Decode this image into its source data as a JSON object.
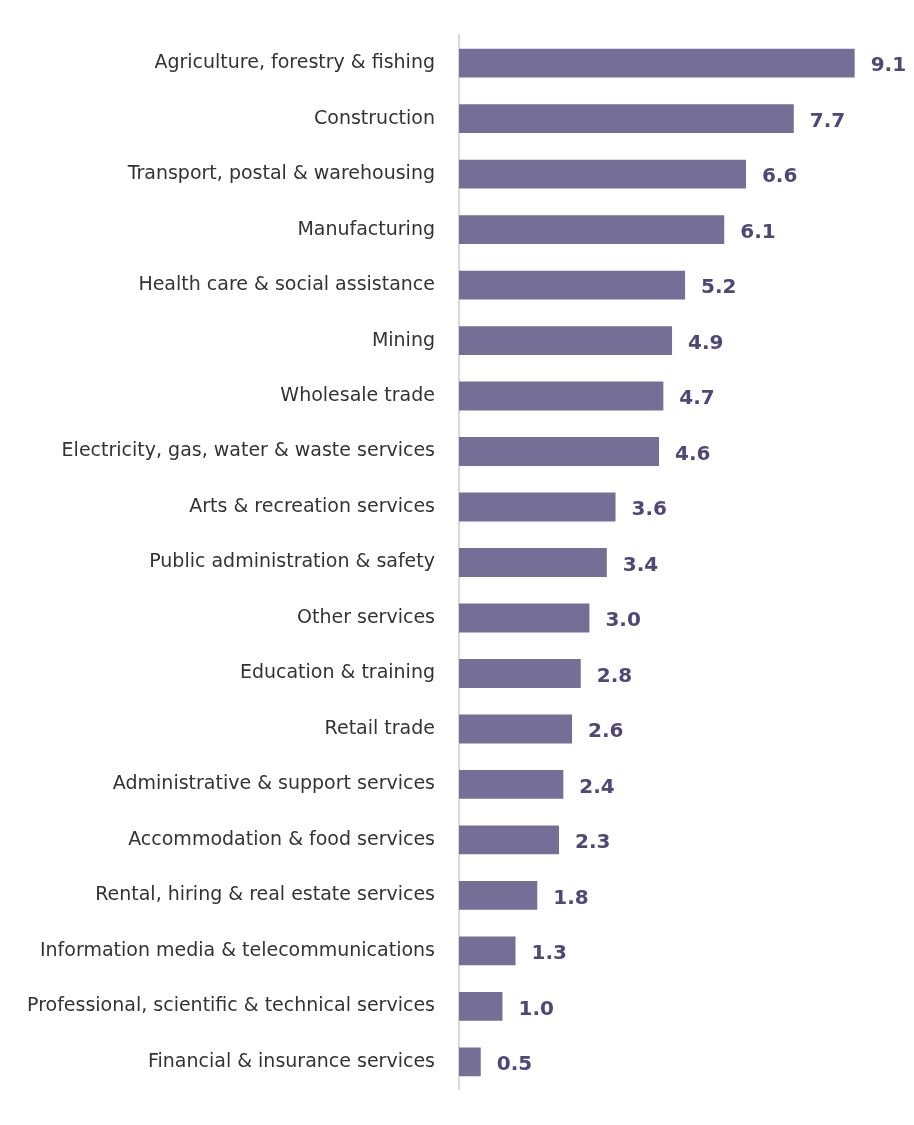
{
  "chart_data": {
    "type": "bar",
    "orientation": "horizontal",
    "categories": [
      "Agriculture, forestry & fishing",
      "Construction",
      "Transport, postal & warehousing",
      "Manufacturing",
      "Health care & social assistance",
      "Mining",
      "Wholesale trade",
      "Electricity, gas, water & waste services",
      "Arts & recreation services",
      "Public administration & safety",
      "Other services",
      "Education & training",
      "Retail trade",
      "Administrative & support services",
      "Accommodation & food services",
      "Rental, hiring & real estate services",
      "Information media & telecommunications",
      "Professional, scientific & technical services",
      "Financial & insurance services"
    ],
    "values": [
      9.1,
      7.7,
      6.6,
      6.1,
      5.2,
      4.9,
      4.7,
      4.6,
      3.6,
      3.4,
      3.0,
      2.8,
      2.6,
      2.4,
      2.3,
      1.8,
      1.3,
      1.0,
      0.5
    ],
    "value_labels": [
      "9.1",
      "7.7",
      "6.6",
      "6.1",
      "5.2",
      "4.9",
      "4.7",
      "4.6",
      "3.6",
      "3.4",
      "3.0",
      "2.8",
      "2.6",
      "2.4",
      "2.3",
      "1.8",
      "1.3",
      "1.0",
      "0.5"
    ],
    "color": "#756e97"
  }
}
